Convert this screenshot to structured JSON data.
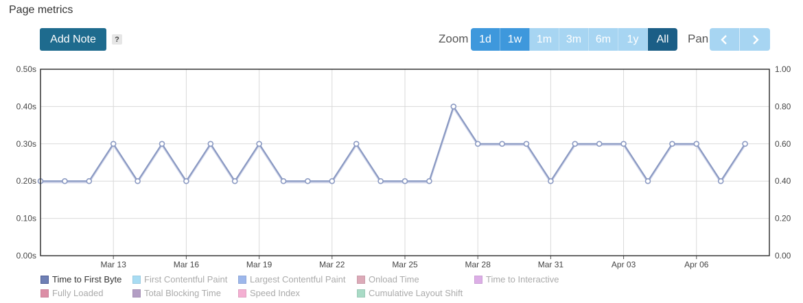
{
  "header": {
    "title": "Page metrics",
    "add_note_label": "Add Note",
    "help_label": "?"
  },
  "zoom": {
    "label": "Zoom",
    "buttons": [
      {
        "label": "1d",
        "state": "available",
        "color": "#3e98dc"
      },
      {
        "label": "1w",
        "state": "available",
        "color": "#3e98dc"
      },
      {
        "label": "1m",
        "state": "disabled",
        "color": "#a7d5f2"
      },
      {
        "label": "3m",
        "state": "disabled",
        "color": "#a7d5f2"
      },
      {
        "label": "6m",
        "state": "disabled",
        "color": "#a7d5f2"
      },
      {
        "label": "1y",
        "state": "disabled",
        "color": "#a7d5f2"
      },
      {
        "label": "All",
        "state": "selected",
        "color": "#1b5e86"
      }
    ]
  },
  "pan": {
    "label": "Pan",
    "left_icon": "chevron-left-icon",
    "right_icon": "chevron-right-icon"
  },
  "chart_data": {
    "type": "line",
    "title": "",
    "xlabel": "",
    "ylabel": "",
    "x_tick_labels": [
      "Mar 13",
      "Mar 16",
      "Mar 19",
      "Mar 22",
      "Mar 25",
      "Mar 28",
      "Mar 31",
      "Apr 03",
      "Apr 06"
    ],
    "y_left_ticks": [
      "0.00s",
      "0.10s",
      "0.20s",
      "0.30s",
      "0.40s",
      "0.50s"
    ],
    "y_right_ticks": [
      "0.00",
      "0.20",
      "0.40",
      "0.60",
      "0.80",
      "1.00"
    ],
    "ylim_left": [
      0,
      0.5
    ],
    "ylim_right": [
      0,
      1.0
    ],
    "x_day_range": [
      "2023-03-10",
      "2023-04-09"
    ],
    "grid": true,
    "legend_position": "bottom",
    "series": [
      {
        "name": "Time to First Byte",
        "color": "#8a99c2",
        "x": [
          "2023-03-10",
          "2023-03-11",
          "2023-03-12",
          "2023-03-13",
          "2023-03-14",
          "2023-03-15",
          "2023-03-16",
          "2023-03-17",
          "2023-03-18",
          "2023-03-19",
          "2023-03-20",
          "2023-03-21",
          "2023-03-22",
          "2023-03-23",
          "2023-03-24",
          "2023-03-25",
          "2023-03-26",
          "2023-03-27",
          "2023-03-28",
          "2023-03-29",
          "2023-03-30",
          "2023-03-31",
          "2023-04-01",
          "2023-04-02",
          "2023-04-03",
          "2023-04-04",
          "2023-04-05",
          "2023-04-06",
          "2023-04-07",
          "2023-04-08"
        ],
        "values": [
          0.2,
          0.2,
          0.2,
          0.3,
          0.2,
          0.3,
          0.2,
          0.3,
          0.2,
          0.3,
          0.2,
          0.2,
          0.2,
          0.3,
          0.2,
          0.2,
          0.2,
          0.4,
          0.3,
          0.3,
          0.3,
          0.2,
          0.3,
          0.3,
          0.3,
          0.2,
          0.3,
          0.3,
          0.2,
          0.3
        ]
      }
    ]
  },
  "legend": {
    "items": [
      {
        "label": "Time to First Byte",
        "color": "#6f80b5",
        "active": true
      },
      {
        "label": "First Contentful Paint",
        "color": "#a8dcf3",
        "active": false
      },
      {
        "label": "Largest Contentful Paint",
        "color": "#9db7eb",
        "active": false
      },
      {
        "label": "Onload Time",
        "color": "#dcaab8",
        "active": false
      },
      {
        "label": "Time to Interactive",
        "color": "#dcaee6",
        "active": false
      },
      {
        "label": "Fully Loaded",
        "color": "#dc8ea6",
        "active": false
      },
      {
        "label": "Total Blocking Time",
        "color": "#b39ec4",
        "active": false
      },
      {
        "label": "Speed Index",
        "color": "#f4afd2",
        "active": false
      },
      {
        "label": "Cumulative Layout Shift",
        "color": "#a9dbc6",
        "active": false
      }
    ]
  }
}
